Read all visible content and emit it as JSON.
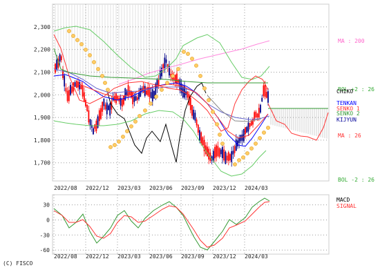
{
  "copyright": "(C) FISCO",
  "chart_data": [
    {
      "type": "candlestick",
      "panel": "price",
      "ylim": [
        1620,
        2400
      ],
      "y_ticks": [
        1700,
        1800,
        1900,
        2000,
        2100,
        2200,
        2300
      ],
      "y_tick_labels": [
        "1,700",
        "1,800",
        "1,900",
        "2,000",
        "2,100",
        "2,200",
        "2,300"
      ],
      "x_tick_labels": [
        "2022/08",
        "2022/12",
        "2023/03",
        "2023/06",
        "2023/09",
        "2023/12",
        "2024/03"
      ],
      "grid": true,
      "series": [
        {
          "name": "MA : 200",
          "color": "#ff88dd",
          "points": [
            [
              172,
              122
            ],
            [
              195,
              114
            ],
            [
              215,
              106
            ],
            [
              240,
              99
            ],
            [
              262,
              93
            ],
            [
              290,
              85
            ],
            [
              320,
              78
            ],
            [
              350,
              71
            ],
            [
              372,
              64
            ],
            [
              390,
              59
            ]
          ]
        },
        {
          "name": "BOL +2 : 26",
          "color": "#66cc66",
          "points": [
            [
              78,
              45
            ],
            [
              95,
              40
            ],
            [
              110,
              38
            ],
            [
              130,
              43
            ],
            [
              150,
              60
            ],
            [
              170,
              80
            ],
            [
              190,
              98
            ],
            [
              210,
              112
            ],
            [
              225,
              110
            ],
            [
              240,
              100
            ],
            [
              255,
              85
            ],
            [
              265,
              66
            ],
            [
              285,
              55
            ],
            [
              300,
              50
            ],
            [
              318,
              62
            ],
            [
              335,
              90
            ],
            [
              350,
              112
            ],
            [
              365,
              115
            ],
            [
              378,
              110
            ],
            [
              390,
              96
            ]
          ]
        },
        {
          "name": "CHIKO",
          "color": "#000000",
          "points": [
            [
              155,
              130
            ],
            [
              160,
              150
            ],
            [
              170,
              165
            ],
            [
              180,
              172
            ],
            [
              195,
              210
            ],
            [
              205,
              222
            ],
            [
              212,
              200
            ],
            [
              220,
              190
            ],
            [
              232,
              205
            ],
            [
              240,
              180
            ],
            [
              248,
              210
            ],
            [
              255,
              235
            ],
            [
              260,
              200
            ],
            [
              268,
              160
            ],
            [
              275,
              140
            ],
            [
              285,
              125
            ],
            [
              292,
              120
            ],
            [
              298,
              135
            ]
          ]
        },
        {
          "name": "TENKAN",
          "color": "#0000ff",
          "points": [
            [
              78,
              110
            ],
            [
              95,
              108
            ],
            [
              105,
              112
            ],
            [
              120,
              118
            ],
            [
              135,
              130
            ],
            [
              150,
              140
            ],
            [
              170,
              145
            ],
            [
              190,
              140
            ],
            [
              210,
              130
            ],
            [
              225,
              125
            ],
            [
              240,
              122
            ],
            [
              255,
              120
            ],
            [
              270,
              125
            ],
            [
              285,
              135
            ],
            [
              300,
              150
            ],
            [
              315,
              170
            ],
            [
              330,
              195
            ],
            [
              345,
              210
            ],
            [
              355,
              212
            ],
            [
              365,
              200
            ],
            [
              375,
              185
            ],
            [
              388,
              165
            ]
          ]
        },
        {
          "name": "KIJYUN",
          "color": "#6666cc",
          "points": [
            [
              78,
              100
            ],
            [
              100,
              105
            ],
            [
              120,
              115
            ],
            [
              140,
              128
            ],
            [
              160,
              135
            ],
            [
              180,
              133
            ],
            [
              200,
              132
            ],
            [
              220,
              128
            ],
            [
              240,
              126
            ],
            [
              260,
              126
            ],
            [
              280,
              132
            ],
            [
              300,
              150
            ],
            [
              320,
              162
            ],
            [
              340,
              170
            ],
            [
              360,
              173
            ],
            [
              375,
              172
            ],
            [
              390,
              168
            ]
          ]
        },
        {
          "name": "SENKO 1",
          "color": "#ff3333",
          "points": [
            [
              78,
              50
            ],
            [
              88,
              70
            ],
            [
              100,
              110
            ],
            [
              115,
              145
            ],
            [
              130,
              150
            ],
            [
              150,
              140
            ],
            [
              165,
              128
            ],
            [
              185,
              120
            ],
            [
              205,
              118
            ],
            [
              225,
              123
            ],
            [
              245,
              128
            ],
            [
              260,
              130
            ],
            [
              275,
              138
            ],
            [
              290,
              150
            ],
            [
              300,
              160
            ],
            [
              310,
              175
            ],
            [
              320,
              190
            ],
            [
              330,
              185
            ],
            [
              340,
              150
            ],
            [
              350,
              130
            ],
            [
              360,
              118
            ],
            [
              370,
              110
            ],
            [
              380,
              115
            ],
            [
              388,
              130
            ]
          ]
        },
        {
          "name": "SENKO 2",
          "color": "#339933",
          "points": [
            [
              78,
              70
            ],
            [
              88,
              100
            ],
            [
              100,
              105
            ],
            [
              130,
              110
            ],
            [
              160,
              112
            ],
            [
              190,
              113
            ],
            [
              215,
              114
            ],
            [
              240,
              115
            ],
            [
              270,
              118
            ],
            [
              300,
              120
            ],
            [
              330,
              120
            ],
            [
              360,
              120
            ],
            [
              388,
              120
            ]
          ]
        },
        {
          "name": "SENKO 1 (fwd)",
          "color": "#ff3333",
          "points": [
            [
              388,
              150
            ],
            [
              400,
              175
            ],
            [
              412,
              180
            ],
            [
              422,
              193
            ],
            [
              435,
              197
            ],
            [
              445,
              198
            ],
            [
              458,
              203
            ],
            [
              468,
              185
            ],
            [
              475,
              163
            ]
          ]
        },
        {
          "name": "SENKO 2 (fwd)",
          "color": "#339933",
          "points": [
            [
              388,
              157
            ],
            [
              420,
              157
            ],
            [
              450,
              157
            ],
            [
              475,
              157
            ]
          ]
        },
        {
          "name": "MA : 26",
          "color": "#ff3333",
          "points": [
            [
              110,
              120
            ],
            [
              130,
              128
            ],
            [
              150,
              136
            ],
            [
              165,
              140
            ],
            [
              185,
              138
            ],
            [
              205,
              130
            ],
            [
              225,
              125
            ],
            [
              245,
              122
            ],
            [
              265,
              125
            ],
            [
              285,
              135
            ],
            [
              300,
              150
            ],
            [
              315,
              170
            ],
            [
              330,
              190
            ],
            [
              345,
              200
            ],
            [
              360,
              196
            ],
            [
              375,
              180
            ],
            [
              388,
              165
            ]
          ]
        },
        {
          "name": "BOL -2 : 26",
          "color": "#66cc66",
          "points": [
            [
              78,
              175
            ],
            [
              95,
              178
            ],
            [
              110,
              180
            ],
            [
              130,
              182
            ],
            [
              150,
              182
            ],
            [
              170,
              180
            ],
            [
              190,
              175
            ],
            [
              210,
              165
            ],
            [
              230,
              160
            ],
            [
              250,
              162
            ],
            [
              265,
              172
            ],
            [
              280,
              190
            ],
            [
              295,
              215
            ],
            [
              310,
              235
            ],
            [
              320,
              248
            ],
            [
              335,
              255
            ],
            [
              350,
              252
            ],
            [
              365,
              240
            ],
            [
              375,
              228
            ],
            [
              385,
              218
            ]
          ]
        },
        {
          "name": "CHIKO SPAN (ext)",
          "color": "#888888",
          "points": [
            [
              300,
              138
            ],
            [
              320,
              160
            ],
            [
              340,
              175
            ],
            [
              360,
              176
            ],
            [
              378,
              172
            ]
          ]
        }
      ],
      "legend": [
        {
          "label": "MA : 200",
          "color": "#ff66cc"
        },
        {
          "label": "BOL +2 : 26",
          "color": "#33aa33"
        },
        {
          "label": "CHIKO",
          "color": "#000000"
        },
        {
          "label": "TENKAN",
          "color": "#0000ff"
        },
        {
          "label": "SENKO 1",
          "color": "#ff3333"
        },
        {
          "label": "SENKO 2",
          "color": "#339933"
        },
        {
          "label": "KIJYUN",
          "color": "#000099"
        },
        {
          "label": "MA : 26",
          "color": "#ff3333"
        },
        {
          "label": "BOL -2 : 26",
          "color": "#33aa33"
        }
      ]
    },
    {
      "type": "line",
      "panel": "macd",
      "ylim": [
        -68,
        50
      ],
      "y_ticks": [
        30,
        0,
        -30,
        -60
      ],
      "y_tick_labels": [
        "30",
        "0",
        "-30",
        "-60"
      ],
      "x_tick_labels": [
        "2022/08",
        "2022/12",
        "2023/03",
        "2023/06",
        "2023/09",
        "2023/12",
        "2024/03"
      ],
      "series": [
        {
          "name": "MACD",
          "color": "#339933",
          "points": [
            [
              78,
              302
            ],
            [
              90,
              312
            ],
            [
              100,
              330
            ],
            [
              110,
              322
            ],
            [
              120,
              310
            ],
            [
              130,
              335
            ],
            [
              140,
              352
            ],
            [
              150,
              342
            ],
            [
              160,
              330
            ],
            [
              170,
              312
            ],
            [
              180,
              305
            ],
            [
              190,
              320
            ],
            [
              200,
              330
            ],
            [
              210,
              316
            ],
            [
              222,
              305
            ],
            [
              235,
              297
            ],
            [
              245,
              292
            ],
            [
              255,
              300
            ],
            [
              265,
              312
            ],
            [
              280,
              342
            ],
            [
              290,
              358
            ],
            [
              300,
              362
            ],
            [
              310,
              350
            ],
            [
              322,
              335
            ],
            [
              332,
              318
            ],
            [
              342,
              325
            ],
            [
              355,
              315
            ],
            [
              365,
              300
            ],
            [
              375,
              292
            ],
            [
              383,
              287
            ],
            [
              390,
              291
            ]
          ]
        },
        {
          "name": "SIGNAL",
          "color": "#ff3333",
          "points": [
            [
              78,
              305
            ],
            [
              90,
              312
            ],
            [
              100,
              322
            ],
            [
              110,
              322
            ],
            [
              120,
              318
            ],
            [
              130,
              328
            ],
            [
              140,
              342
            ],
            [
              150,
              345
            ],
            [
              160,
              338
            ],
            [
              170,
              322
            ],
            [
              180,
              312
            ],
            [
              190,
              314
            ],
            [
              200,
              322
            ],
            [
              210,
              320
            ],
            [
              222,
              312
            ],
            [
              235,
              303
            ],
            [
              245,
              298
            ],
            [
              255,
              300
            ],
            [
              265,
              310
            ],
            [
              280,
              332
            ],
            [
              290,
              348
            ],
            [
              300,
              358
            ],
            [
              310,
              355
            ],
            [
              322,
              345
            ],
            [
              332,
              330
            ],
            [
              342,
              326
            ],
            [
              355,
              320
            ],
            [
              365,
              310
            ],
            [
              375,
              300
            ],
            [
              383,
              293
            ],
            [
              390,
              292
            ]
          ]
        }
      ],
      "legend": [
        {
          "label": "MACD",
          "color": "#000000"
        },
        {
          "label": "SIGNAL",
          "color": "#ff3333"
        }
      ]
    }
  ]
}
